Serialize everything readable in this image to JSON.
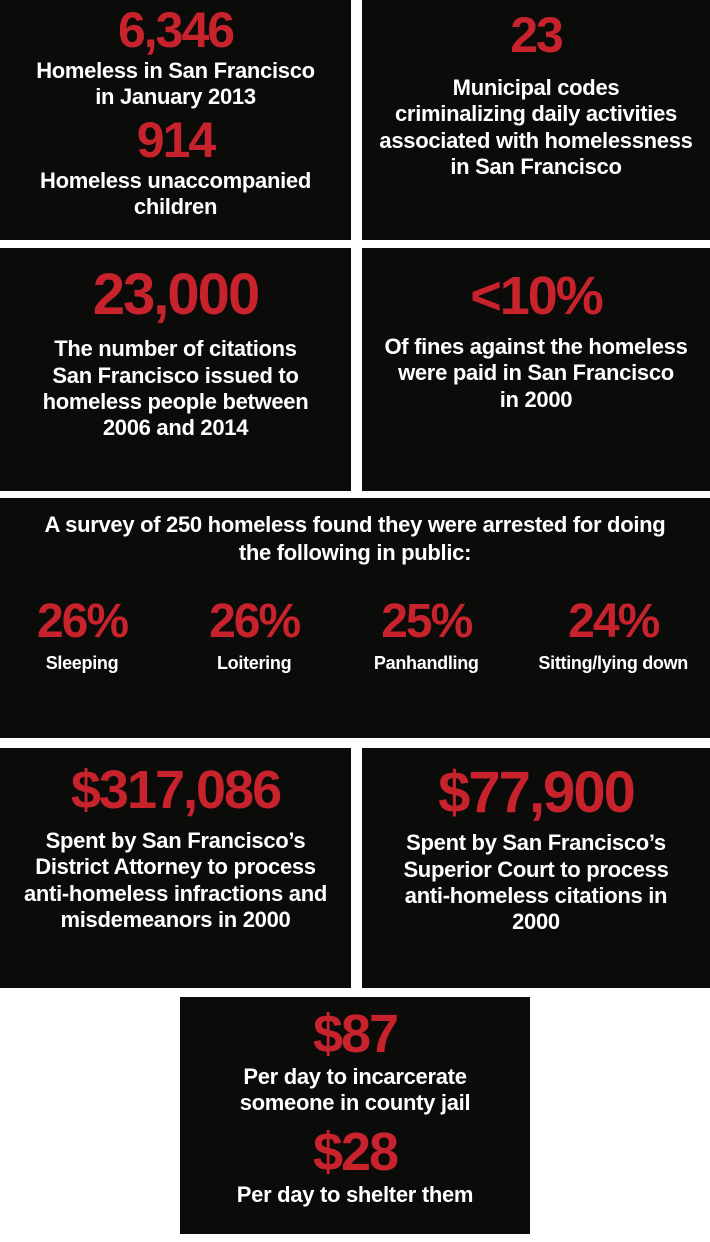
{
  "colors": {
    "accent_red": "#c8232c",
    "text_white": "#ffffff",
    "card_black": "#0b0b09",
    "background": "#ffffff"
  },
  "boxes": {
    "homeless_population": {
      "stat1": "6,346",
      "caption1": "Homeless in San Francisco\nin January 2013",
      "stat2": "914",
      "caption2": "Homeless unaccompanied\nchildren"
    },
    "municipal_codes": {
      "stat": "23",
      "caption": "Municipal codes\ncriminalizing daily activities\nassociated with homelessness\nin San Francisco"
    },
    "citations": {
      "stat": "23,000",
      "caption": "The number of citations\nSan Francisco issued to\nhomeless people between\n2006 and 2014"
    },
    "unpaid_fines": {
      "stat": "<10%",
      "caption": "Of fines against the homeless\nwere paid in San Francisco\nin 2000"
    },
    "survey": {
      "heading": "A survey of 250 homeless found they were arrested for doing\nthe following in public:",
      "stats": [
        {
          "value": "26%",
          "label": "Sleeping"
        },
        {
          "value": "26%",
          "label": "Loitering"
        },
        {
          "value": "25%",
          "label": "Panhandling"
        },
        {
          "value": "24%",
          "label": "Sitting/lying down"
        }
      ]
    },
    "district_attorney": {
      "stat": "$317,086",
      "caption": "Spent by San Francisco’s\nDistrict Attorney to process\nanti-homeless infractions and\nmisdemeanors in 2000"
    },
    "superior_court": {
      "stat": "$77,900",
      "caption": "Spent by San Francisco’s\nSuperior Court to process\nanti-homeless citations in\n2000"
    },
    "daily_cost": {
      "stat1": "$87",
      "caption1": "Per day to incarcerate\nsomeone in county jail",
      "stat2": "$28",
      "caption2": "Per day to shelter them"
    }
  },
  "chart_data": {
    "type": "table",
    "title": "Criminalization of homelessness in San Francisco — key statistics",
    "rows": [
      [
        "Homeless in San Francisco in January 2013",
        6346
      ],
      [
        "Homeless unaccompanied children",
        914
      ],
      [
        "Municipal codes criminalizing daily activities associated with homelessness in San Francisco",
        23
      ],
      [
        "Citations San Francisco issued to homeless people between 2006 and 2014",
        23000
      ],
      [
        "Share of fines against the homeless paid in San Francisco in 2000",
        "<10%"
      ],
      [
        "Spent by San Francisco’s District Attorney to process anti-homeless infractions and misdemeanors in 2000 (USD)",
        317086
      ],
      [
        "Spent by San Francisco’s Superior Court to process anti-homeless citations in 2000 (USD)",
        77900
      ],
      [
        "Per day to incarcerate someone in county jail (USD)",
        87
      ],
      [
        "Per day to shelter them (USD)",
        28
      ]
    ],
    "survey_chart": {
      "type": "bar",
      "title": "A survey of 250 homeless found they were arrested for doing the following in public:",
      "categories": [
        "Sleeping",
        "Loitering",
        "Panhandling",
        "Sitting/lying down"
      ],
      "values": [
        26,
        26,
        25,
        24
      ],
      "unit": "%"
    }
  }
}
